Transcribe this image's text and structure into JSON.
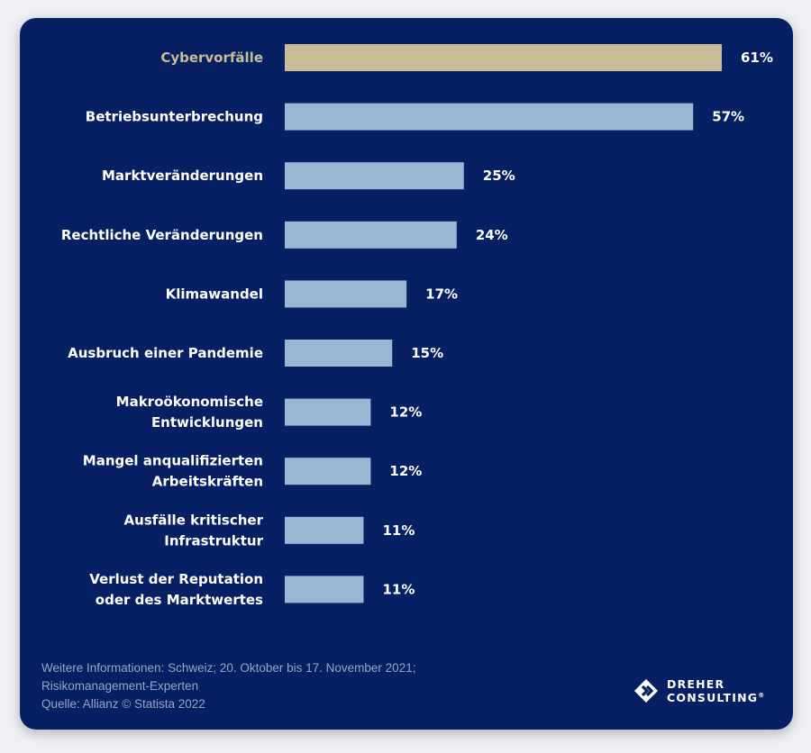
{
  "colors": {
    "background": "#062063",
    "highlight_bar": "#c9bd97",
    "bar": "#9ab6d3",
    "label": "#ffffff",
    "highlight_label": "#c9bd97"
  },
  "chart_data": {
    "type": "bar",
    "orientation": "horizontal",
    "unit": "%",
    "categories": [
      "Cybervorfälle",
      "Betriebsunterbrechung",
      "Marktveränderungen",
      "Rechtliche Veränderungen",
      "Klimawandel",
      "Ausbruch einer Pandemie",
      "Makroökonomische Entwicklungen",
      "Mangel anqualifizierten Arbeitskräften",
      "Ausfälle kritischer Infrastruktur",
      "Verlust der Reputation oder des Marktwertes"
    ],
    "category_lines": [
      [
        "Cybervorfälle"
      ],
      [
        "Betriebsunterbrechung"
      ],
      [
        "Marktveränderungen"
      ],
      [
        "Rechtliche Veränderungen"
      ],
      [
        "Klimawandel"
      ],
      [
        "Ausbruch einer Pandemie"
      ],
      [
        "Makroökonomische",
        "Entwicklungen"
      ],
      [
        "Mangel anqualifizierten",
        "Arbeitskräften"
      ],
      [
        "Ausfälle kritischer",
        "Infrastruktur"
      ],
      [
        "Verlust der Reputation",
        "oder des Marktwertes"
      ]
    ],
    "values": [
      61,
      57,
      25,
      24,
      17,
      15,
      12,
      12,
      11,
      11
    ],
    "value_labels": [
      "61%",
      "57%",
      "25%",
      "24%",
      "17%",
      "15%",
      "12%",
      "12%",
      "11%",
      "11%"
    ],
    "highlight_index": 0,
    "xlim": [
      0,
      61
    ],
    "grid": false,
    "legend": "none"
  },
  "footnote": {
    "line1": "Weitere Informationen: Schweiz; 20. Oktober bis 17. November 2021;",
    "line2": "Risikomanagement-Experten",
    "line3": "Quelle: Allianz © Statista 2022"
  },
  "logo": {
    "line1": "DREHER",
    "line2": "CONSULTING",
    "mark": "®"
  }
}
